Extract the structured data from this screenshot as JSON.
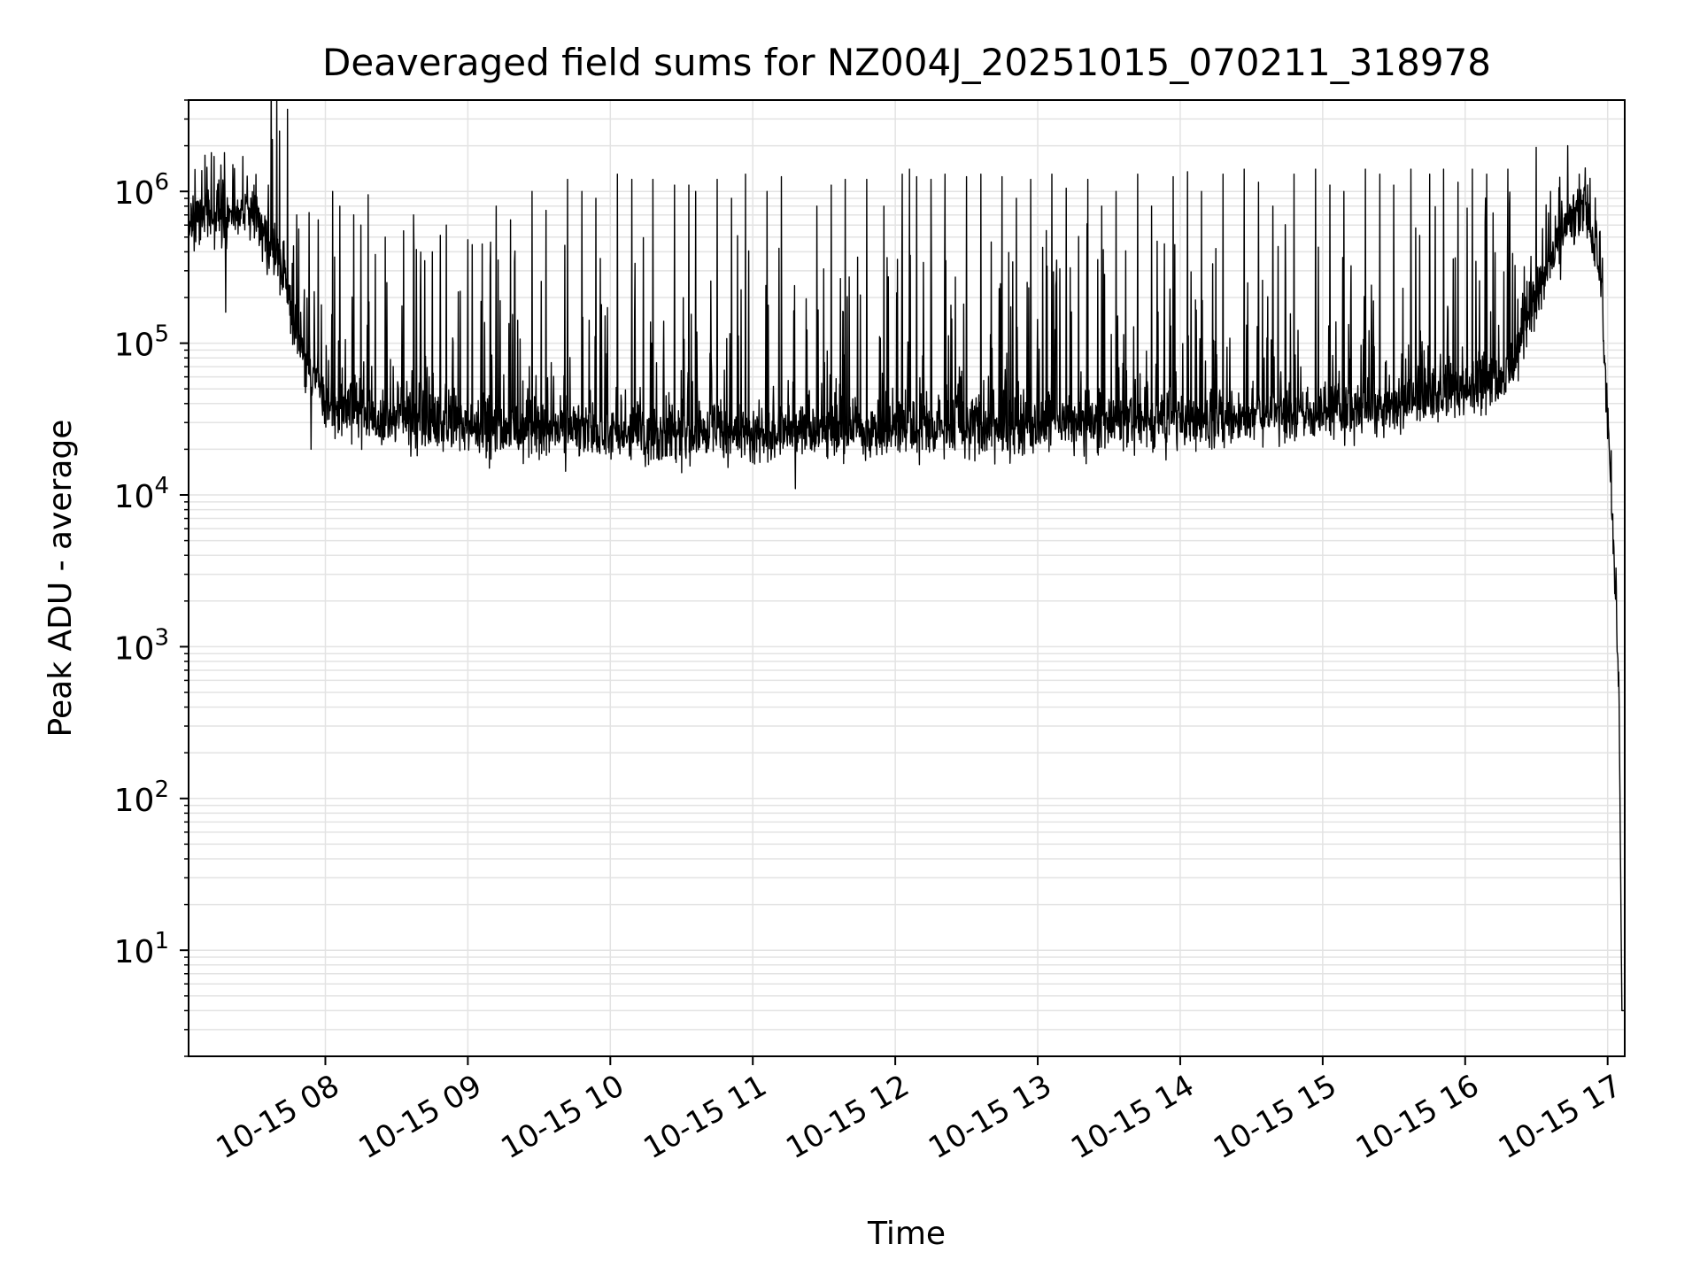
{
  "chart_data": {
    "type": "line",
    "title": "Deaveraged field sums for NZ004J_20251015_070211_318978",
    "xlabel": "Time",
    "ylabel": "Peak ADU - average",
    "yscale": "log",
    "ylim": [
      2,
      4000000
    ],
    "xlim_hours": [
      7.04,
      17.12
    ],
    "grid": true,
    "x_tick_hours": [
      8,
      9,
      10,
      11,
      12,
      13,
      14,
      15,
      16,
      17
    ],
    "x_tick_labels": [
      "10-15 08",
      "10-15 09",
      "10-15 10",
      "10-15 11",
      "10-15 12",
      "10-15 13",
      "10-15 14",
      "10-15 15",
      "10-15 16",
      "10-15 17"
    ],
    "y_tick_values": [
      10,
      100,
      1000,
      10000,
      100000,
      1000000
    ],
    "y_tick_bases": [
      "10",
      "10",
      "10",
      "10",
      "10",
      "10"
    ],
    "y_tick_exps": [
      "1",
      "2",
      "3",
      "4",
      "5",
      "6"
    ],
    "line_color": "#000000",
    "grid_color": "#e3e3e3",
    "baseline_hours": [
      7.04,
      7.3,
      7.5,
      7.7,
      7.85,
      8.0,
      8.5,
      9.0,
      9.5,
      10.0,
      10.5,
      11.0,
      11.5,
      12.0,
      12.5,
      13.0,
      13.5,
      14.0,
      14.5,
      15.0,
      15.5,
      16.0,
      16.3,
      16.5,
      16.7,
      16.85,
      16.95,
      17.0,
      17.05,
      17.08,
      17.1,
      17.12
    ],
    "baseline_values": [
      600000,
      700000,
      650000,
      300000,
      80000,
      40000,
      30000,
      28000,
      26000,
      25000,
      25000,
      25000,
      26000,
      27000,
      28000,
      28000,
      30000,
      30000,
      32000,
      35000,
      40000,
      48000,
      60000,
      200000,
      550000,
      750000,
      300000,
      30000,
      3000,
      500,
      4,
      4
    ],
    "spike_hours": [
      7.2,
      7.3,
      7.35,
      7.42,
      7.5,
      7.6,
      7.8,
      7.95,
      8.05,
      8.1,
      8.2,
      8.25,
      8.3,
      8.42,
      8.55,
      8.62,
      8.75,
      8.85,
      9.0,
      9.1,
      9.2,
      9.3,
      9.45,
      9.55,
      9.7,
      9.8,
      9.9,
      10.05,
      10.15,
      10.3,
      10.45,
      10.55,
      10.6,
      10.75,
      10.85,
      10.95,
      11.1,
      11.2,
      11.3,
      11.45,
      11.55,
      11.65,
      11.8,
      11.92,
      12.05,
      12.1,
      12.15,
      12.25,
      12.35,
      12.5,
      12.6,
      12.75,
      12.85,
      12.95,
      13.1,
      13.2,
      13.35,
      13.45,
      13.55,
      13.7,
      13.8,
      13.95,
      14.05,
      14.15,
      14.3,
      14.45,
      14.55,
      14.65,
      14.8,
      14.95,
      15.05,
      15.15,
      15.3,
      15.4,
      15.5,
      15.62,
      15.75,
      15.85,
      15.95,
      16.05,
      16.15,
      16.3,
      16.6,
      16.72,
      16.8
    ],
    "spike_values": [
      1800000,
      2000000,
      1500000,
      1700000,
      1100000,
      1100000,
      700000,
      650000,
      1000000,
      800000,
      700000,
      600000,
      950000,
      500000,
      550000,
      700000,
      400000,
      600000,
      480000,
      450000,
      800000,
      650000,
      1000000,
      750000,
      1200000,
      1000000,
      900000,
      1300000,
      1200000,
      1200000,
      1100000,
      1100000,
      1000000,
      1200000,
      900000,
      1300000,
      1000000,
      1250000,
      1100000,
      800000,
      1100000,
      1200000,
      1200000,
      800000,
      1300000,
      1400000,
      1250000,
      1200000,
      1300000,
      1250000,
      1300000,
      1250000,
      900000,
      1200000,
      1300000,
      1050000,
      1200000,
      800000,
      1000000,
      1300000,
      800000,
      1250000,
      1350000,
      1000000,
      1300000,
      1400000,
      1150000,
      800000,
      1300000,
      1400000,
      1100000,
      1000000,
      1400000,
      1300000,
      1100000,
      1400000,
      1300000,
      1400000,
      1150000,
      1400000,
      1300000,
      1400000,
      1000000,
      2000000,
      1300000
    ],
    "dip_hours": [
      7.3,
      7.9,
      8.6,
      9.15,
      10.5,
      11.3,
      12.7,
      13.9
    ],
    "dip_values": [
      160000,
      20000,
      18000,
      15000,
      14000,
      11000,
      16000,
      17000
    ]
  }
}
